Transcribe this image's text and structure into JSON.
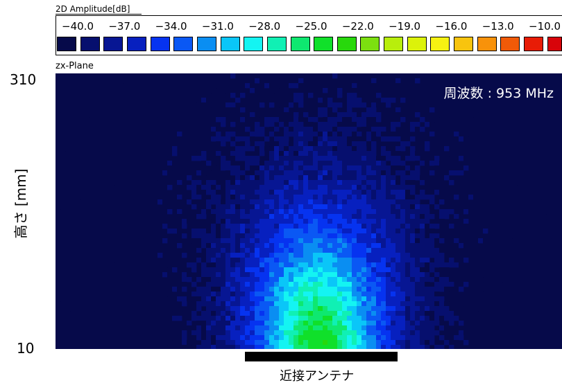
{
  "colorbar": {
    "title": "2D Amplitude[dB]",
    "ticks": [
      "−40.0",
      "−37.0",
      "−34.0",
      "−31.0",
      "−28.0",
      "−25.0",
      "−22.0",
      "−19.0",
      "−16.0",
      "−13.0",
      "−10.0"
    ],
    "colors": [
      "#060a4a",
      "#060f6e",
      "#071693",
      "#0720bf",
      "#0633f0",
      "#0a58f4",
      "#0a8ef2",
      "#0ac6f8",
      "#14f4f2",
      "#10f0b4",
      "#0ee870",
      "#10e02a",
      "#28d80c",
      "#7ce010",
      "#b8ee0c",
      "#dcf20a",
      "#f6f212",
      "#f8c40e",
      "#f8920a",
      "#f05a08",
      "#e81c06",
      "#d8040a"
    ]
  },
  "plot": {
    "plane_label": "zx-Plane",
    "annotation": "周波数 : 953 MHz"
  },
  "chart_data": {
    "type": "heatmap",
    "title": "",
    "xlabel": "",
    "ylabel": "高さ [mm]",
    "y_ticks": [
      "310",
      "10"
    ],
    "ylim": [
      10,
      310
    ],
    "value_unit": "dB",
    "value_range": [
      -40.0,
      -10.0
    ],
    "background_value": -40.0,
    "peak": {
      "x_fraction": 0.52,
      "y_mm": 10,
      "value": -23.5
    },
    "annotation": "周波数 : 953 MHz",
    "antenna_label": "近接アンテナ"
  }
}
